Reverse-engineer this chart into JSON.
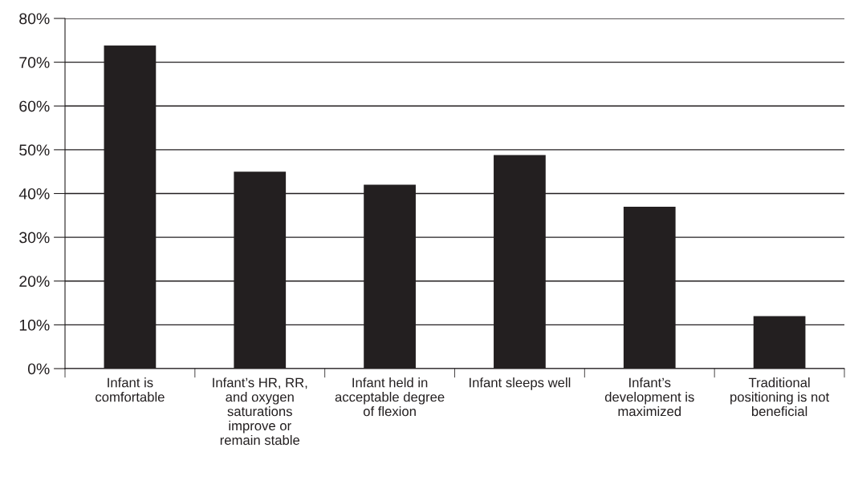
{
  "chart_data": {
    "type": "bar",
    "categories": [
      "Infant is\ncomfortable",
      "Infant’s HR, RR,\nand oxygen\nsaturations\nimprove or\nremain stable",
      "Infant held in\nacceptable degree\nof flexion",
      "Infant sleeps well",
      "Infant’s\ndevelopment is\nmaximized",
      "Traditional\npositioning is not\nbeneficial"
    ],
    "values": [
      73.8,
      45,
      42,
      48.8,
      37,
      12
    ],
    "color": "#231f20",
    "ylim": [
      0,
      80
    ],
    "yticks": [
      {
        "value": 0,
        "label": "0%"
      },
      {
        "value": 10,
        "label": "10%"
      },
      {
        "value": 20,
        "label": "20%"
      },
      {
        "value": 30,
        "label": "30%"
      },
      {
        "value": 40,
        "label": "40%"
      },
      {
        "value": 50,
        "label": "50%"
      },
      {
        "value": 60,
        "label": "60%"
      },
      {
        "value": 70,
        "label": "70%"
      },
      {
        "value": 80,
        "label": "80%"
      }
    ],
    "grid": "y",
    "legend": false
  }
}
